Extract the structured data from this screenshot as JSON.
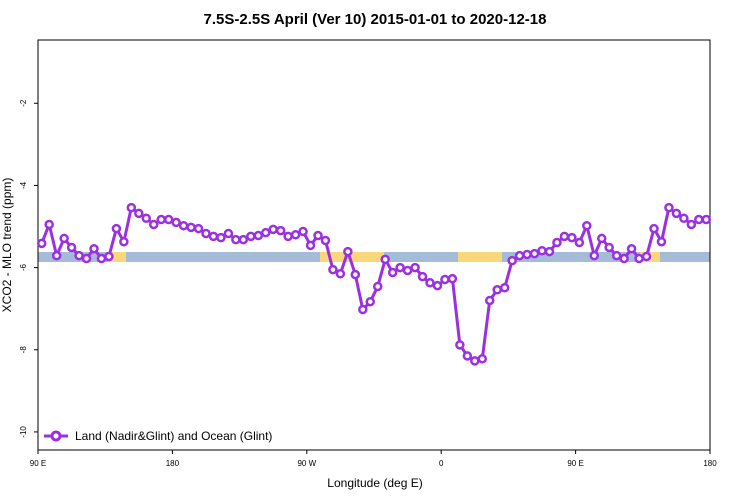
{
  "chart_data": {
    "type": "line",
    "title": "7.5S-2.5S April (Ver 10)   2015-01-01 to 2020-12-18",
    "x_label": "Longitude (deg E)",
    "y_label": "XCO2 - MLO trend (ppm)",
    "xlim": [
      90,
      540
    ],
    "xticks": [
      {
        "value": 90,
        "label": "90 E"
      },
      180,
      {
        "value": 270,
        "label": "90 W"
      },
      {
        "value": 360,
        "label": "0"
      },
      {
        "value": 450,
        "label": "90 E"
      },
      {
        "value": 540,
        "label": "180"
      }
    ],
    "ylim": [
      -10.44,
      -0.46
    ],
    "yticks": [
      -2,
      -4,
      -6,
      -8,
      -10
    ],
    "legend": "bottom-left",
    "series": [
      {
        "name": "Land (Nadir&Glint) and Ocean (Glint)",
        "color": "#9b30e0",
        "x": [
          92.5,
          97.5,
          102.5,
          107.5,
          112.5,
          117.5,
          122.5,
          127.5,
          132.5,
          137.5,
          142.5,
          147.5,
          152.5,
          157.5,
          162.5,
          167.5,
          172.5,
          177.5,
          182.5,
          187.5,
          192.5,
          197.5,
          202.5,
          207.5,
          212.5,
          217.5,
          222.5,
          227.5,
          232.5,
          237.5,
          242.5,
          247.5,
          252.5,
          257.5,
          262.5,
          267.5,
          272.5,
          277.5,
          282.5,
          287.5,
          292.5,
          297.5,
          302.5,
          307.5,
          312.5,
          317.5,
          322.5,
          327.5,
          332.5,
          337.5,
          342.5,
          347.5,
          352.5,
          357.5,
          362.5,
          367.5,
          372.5,
          377.5,
          382.5,
          387.5,
          392.5,
          397.5,
          402.5,
          407.5,
          412.5,
          417.5,
          422.5,
          427.5,
          432.5,
          437.5,
          442.5,
          447.5,
          452.5,
          457.5,
          462.5,
          467.5,
          472.5,
          477.5,
          482.5,
          487.5,
          492.5,
          497.5,
          502.5,
          507.5,
          512.5,
          517.5,
          522.5,
          527.5,
          532.5,
          537.5
        ],
        "values": [
          -5.41,
          -4.95,
          -5.71,
          -5.29,
          -5.51,
          -5.71,
          -5.78,
          -5.54,
          -5.78,
          -5.73,
          -5.05,
          -5.37,
          -4.54,
          -4.68,
          -4.8,
          -4.95,
          -4.83,
          -4.83,
          -4.9,
          -4.98,
          -5.02,
          -5.05,
          -5.17,
          -5.24,
          -5.27,
          -5.17,
          -5.32,
          -5.32,
          -5.24,
          -5.22,
          -5.15,
          -5.07,
          -5.1,
          -5.24,
          -5.2,
          -5.12,
          -5.46,
          -5.22,
          -5.34,
          -6.05,
          -6.15,
          -5.61,
          -6.17,
          -7.02,
          -6.83,
          -6.46,
          -5.8,
          -6.12,
          -6.0,
          -6.07,
          -6.0,
          -6.22,
          -6.37,
          -6.44,
          -6.29,
          -6.27,
          -7.88,
          -8.15,
          -8.27,
          -8.22,
          -6.8,
          -6.54,
          -6.49,
          -5.83,
          -5.71,
          -5.68,
          -5.66,
          -5.59,
          -5.61,
          -5.39,
          -5.24,
          -5.27,
          -5.39,
          -4.98,
          -5.71,
          -5.29,
          -5.51,
          -5.71,
          -5.78,
          -5.54,
          -5.78,
          -5.73,
          -5.05,
          -5.37,
          -4.54,
          -4.68,
          -4.8,
          -4.95,
          -4.83,
          -4.83
        ]
      }
    ]
  }
}
